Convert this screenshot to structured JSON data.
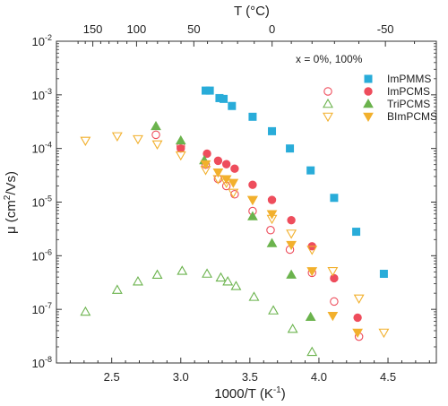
{
  "chart_data": {
    "type": "scatter",
    "title": "",
    "xlabel": "1000/T (K",
    "xlabel_sup": "-1",
    "xlabel_close": ")",
    "ylabel": "μ (cm",
    "ylabel_sup": "2",
    "ylabel_close": "/Vs)",
    "top_xlabel": "T (°C)",
    "xlim": [
      2.1,
      4.85
    ],
    "ylim_log10": [
      -8,
      -2
    ],
    "y_scale": "log",
    "grid": false,
    "x_ticks": [
      {
        "value": 2.5,
        "label": "2.5"
      },
      {
        "value": 3.0,
        "label": "3.0"
      },
      {
        "value": 3.5,
        "label": "3.5"
      },
      {
        "value": 4.0,
        "label": "4.0"
      },
      {
        "value": 4.5,
        "label": "4.5"
      }
    ],
    "y_ticks": [
      {
        "exp": -8,
        "base": "10",
        "sup": "-8"
      },
      {
        "exp": -7,
        "base": "10",
        "sup": "-7"
      },
      {
        "exp": -6,
        "base": "10",
        "sup": "-6"
      },
      {
        "exp": -5,
        "base": "10",
        "sup": "-5"
      },
      {
        "exp": -4,
        "base": "10",
        "sup": "-4"
      },
      {
        "exp": -3,
        "base": "10",
        "sup": "-3"
      },
      {
        "exp": -2,
        "base": "10",
        "sup": "-2"
      }
    ],
    "top_ticks": [
      {
        "celsius": 150,
        "label": "150"
      },
      {
        "celsius": 100,
        "label": "100"
      },
      {
        "celsius": 50,
        "label": "50"
      },
      {
        "celsius": 0,
        "label": "0"
      },
      {
        "celsius": -50,
        "label": "-50"
      }
    ],
    "legend": {
      "position": "top-right",
      "header": "x = 0%,  100%",
      "entries": [
        {
          "label": "ImPMMS",
          "markers": [
            "square-filled"
          ]
        },
        {
          "label": "ImPCMS",
          "markers": [
            "circle-open",
            "circle-filled"
          ]
        },
        {
          "label": "TriPCMS",
          "markers": [
            "tri-up-open",
            "tri-up-filled"
          ]
        },
        {
          "label": "BImPCMS",
          "markers": [
            "tri-down-open",
            "tri-down-filled"
          ]
        }
      ]
    },
    "colors": {
      "ImPMMS": "#29acd9",
      "ImPCMS": "#ee4d5c",
      "TriPCMS": "#6bb34d",
      "BImPCMS": "#f2b02d"
    },
    "series": [
      {
        "name": "ImPMMS",
        "marker": "square-filled",
        "color": "#29acd9",
        "x": [
          3.18,
          3.21,
          3.28,
          3.31,
          3.37,
          3.52,
          3.66,
          3.79,
          3.94,
          4.11,
          4.27,
          4.47
        ],
        "y": [
          0.0012,
          0.0012,
          0.00087,
          0.00084,
          0.00062,
          0.00039,
          0.00021,
          0.0001,
          3.9e-05,
          1.2e-05,
          2.8e-06,
          4.6e-07
        ]
      },
      {
        "name": "ImPCMS (x = 0%)",
        "marker": "circle-open",
        "color": "#ee4d5c",
        "x": [
          2.82,
          3.0,
          3.18,
          3.27,
          3.33,
          3.39,
          3.52,
          3.65,
          3.79,
          3.95,
          4.11,
          4.29
        ],
        "y": [
          0.00018,
          0.00011,
          5e-05,
          2.7e-05,
          2e-05,
          1.4e-05,
          6.8e-06,
          3e-06,
          1.3e-06,
          4.8e-07,
          1.4e-07,
          3.1e-08
        ]
      },
      {
        "name": "ImPCMS (x = 100%)",
        "marker": "circle-filled",
        "color": "#ee4d5c",
        "x": [
          3.0,
          3.19,
          3.27,
          3.33,
          3.39,
          3.52,
          3.66,
          3.8,
          3.95,
          4.11,
          4.28
        ],
        "y": [
          0.0001,
          8e-05,
          5.9e-05,
          5.1e-05,
          4.2e-05,
          2.1e-05,
          1.1e-05,
          4.6e-06,
          1.5e-06,
          3.8e-07,
          7e-08
        ]
      },
      {
        "name": "TriPCMS (x = 0%)",
        "marker": "tri-up-open",
        "color": "#6bb34d",
        "x": [
          2.31,
          2.54,
          2.69,
          2.83,
          3.01,
          3.19,
          3.29,
          3.34,
          3.4,
          3.53,
          3.67,
          3.81,
          3.95
        ],
        "y": [
          9e-08,
          2.3e-07,
          3.3e-07,
          4.4e-07,
          5.2e-07,
          4.6e-07,
          3.9e-07,
          3.3e-07,
          2.7e-07,
          1.7e-07,
          9.5e-08,
          4.3e-08,
          1.6e-08
        ]
      },
      {
        "name": "TriPCMS (x = 100%)",
        "marker": "tri-up-filled",
        "color": "#6bb34d",
        "x": [
          2.82,
          3.0,
          3.17,
          3.52,
          3.66,
          3.8,
          3.94
        ],
        "y": [
          0.00026,
          0.00014,
          6e-05,
          5.4e-06,
          1.7e-06,
          4.4e-07,
          7.2e-08
        ]
      },
      {
        "name": "BImPCMS (x = 0%)",
        "marker": "tri-down-open",
        "color": "#f2b02d",
        "x": [
          2.31,
          2.54,
          2.69,
          2.83,
          3.0,
          3.18,
          3.27,
          3.33,
          3.38,
          3.52,
          3.66,
          3.8,
          3.95,
          4.1,
          4.29,
          4.47
        ],
        "y": [
          0.00014,
          0.00017,
          0.00015,
          0.00012,
          7.5e-05,
          4e-05,
          2.7e-05,
          2.3e-05,
          1.5e-05,
          1.1e-05,
          4.9e-06,
          2.6e-06,
          1.3e-06,
          5.2e-07,
          1.6e-07,
          3.7e-08
        ]
      },
      {
        "name": "BImPCMS (x = 100%)",
        "marker": "tri-down-filled",
        "color": "#f2b02d",
        "x": [
          3.18,
          3.27,
          3.33,
          3.38,
          3.52,
          3.66,
          3.8,
          3.95,
          4.1,
          4.28
        ],
        "y": [
          5.1e-05,
          3.6e-05,
          2.7e-05,
          2.3e-05,
          1.1e-05,
          6e-06,
          1.6e-06,
          5.2e-07,
          7.6e-08,
          3.7e-08
        ]
      }
    ]
  }
}
